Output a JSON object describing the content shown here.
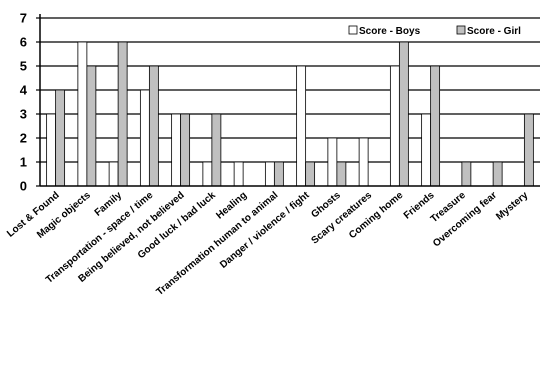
{
  "chart_data": {
    "type": "bar",
    "title": "",
    "xlabel": "",
    "ylabel": "",
    "ylim": [
      0,
      7
    ],
    "yticks": [
      0,
      1,
      2,
      3,
      4,
      5,
      6,
      7
    ],
    "grid": true,
    "legend_position": "top-right",
    "categories": [
      "Lost & Found",
      "Magic objects",
      "Family",
      "Transportation - space / time",
      "Being believed, not believed",
      "Good luck / bad luck",
      "Healing",
      "Transformation human to animal",
      "Danger / violence / fight",
      "Ghosts",
      "Scary creatures",
      "Coming home",
      "Friends",
      "Treasure",
      "Overcoming fear",
      "Mystery"
    ],
    "series": [
      {
        "name": "Score - Boys",
        "color": "#ffffff",
        "values": [
          3,
          6,
          1,
          4,
          3,
          1,
          1,
          1,
          5,
          2,
          2,
          5,
          3,
          0,
          0,
          0
        ]
      },
      {
        "name": "Score - Girl",
        "color": "#c0c0c0",
        "values": [
          4,
          5,
          6,
          5,
          3,
          3,
          0,
          1,
          1,
          1,
          0,
          6,
          5,
          1,
          1,
          3
        ]
      }
    ]
  }
}
